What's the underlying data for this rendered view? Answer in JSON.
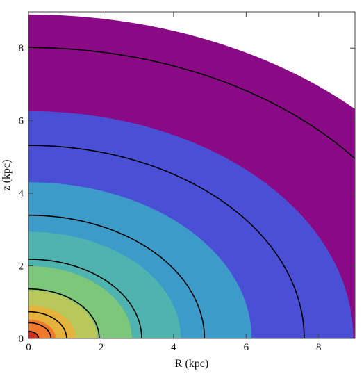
{
  "chart_data": {
    "type": "heatmap",
    "subtype": "filled-contour",
    "title": "",
    "xlabel": "R (kpc)",
    "ylabel": "z (kpc)",
    "xlim": [
      0,
      9
    ],
    "ylim": [
      0,
      9
    ],
    "x_ticks": [
      0,
      2,
      4,
      6,
      8
    ],
    "y_ticks": [
      0,
      2,
      4,
      6,
      8
    ],
    "grid": false,
    "legend": "none",
    "filled_bands": [
      {
        "radius_kpc": 12.75,
        "color": "#8a0a86"
      },
      {
        "radius_kpc": 8.95,
        "color": "#4a50d6"
      },
      {
        "radius_kpc": 6.15,
        "color": "#3d9bc9"
      },
      {
        "radius_kpc": 4.2,
        "color": "#4fb3b0"
      },
      {
        "radius_kpc": 2.85,
        "color": "#7cc77a"
      },
      {
        "radius_kpc": 1.9,
        "color": "#b9c85a"
      },
      {
        "radius_kpc": 1.3,
        "color": "#e5b23c"
      },
      {
        "radius_kpc": 0.75,
        "color": "#f2782d"
      },
      {
        "radius_kpc": 0.28,
        "color": "#d6311e"
      }
    ],
    "contour_lines_kpc": [
      0.28,
      0.62,
      1.05,
      1.95,
      3.12,
      4.85,
      7.6,
      11.45
    ],
    "flattening_z_over_R": 0.7,
    "line_color": "#000000"
  }
}
